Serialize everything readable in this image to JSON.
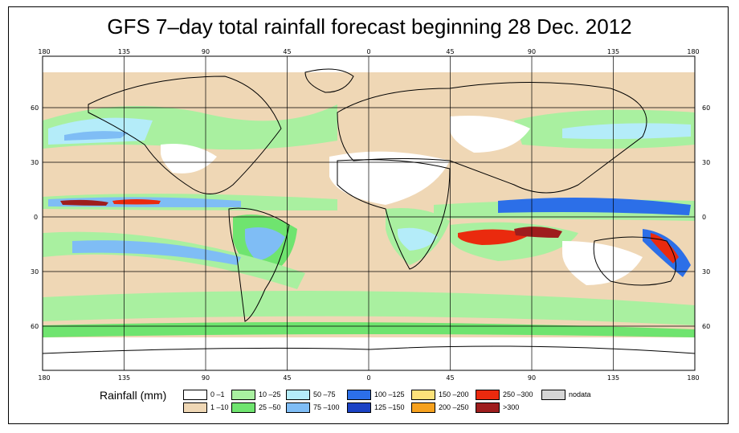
{
  "title": "GFS 7–day total rainfall forecast beginning 28 Dec. 2012",
  "axes": {
    "lon_top": [
      "180",
      "135",
      "90",
      "45",
      "0",
      "45",
      "90",
      "135",
      "180"
    ],
    "lon_bottom": [
      "180",
      "135",
      "90",
      "45",
      "0",
      "45",
      "90",
      "135",
      "180"
    ],
    "lat_left": [
      "60",
      "30",
      "0",
      "30",
      "60"
    ],
    "lat_right": [
      "60",
      "30",
      "0",
      "30",
      "60"
    ]
  },
  "legend": {
    "title": "Rainfall (mm)",
    "items": [
      {
        "label": "0 –1",
        "color": "#ffffff"
      },
      {
        "label": "1 –10",
        "color": "#efd7b5"
      },
      {
        "label": "10 –25",
        "color": "#a9f0a0"
      },
      {
        "label": "25 –50",
        "color": "#6fe46f"
      },
      {
        "label": "50 –75",
        "color": "#b4ecf9"
      },
      {
        "label": "75 –100",
        "color": "#7fbdf5"
      },
      {
        "label": "100 –125",
        "color": "#2c6fe8"
      },
      {
        "label": "125 –150",
        "color": "#1b42c4"
      },
      {
        "label": "150 –200",
        "color": "#fde27a"
      },
      {
        "label": "200 –250",
        "color": "#f6a11e"
      },
      {
        "label": "250 –300",
        "color": "#ea2a0e"
      },
      {
        "label": ">300",
        "color": "#9e1d1d"
      },
      {
        "label": "nodata",
        "color": "#d6d6d6"
      }
    ]
  }
}
